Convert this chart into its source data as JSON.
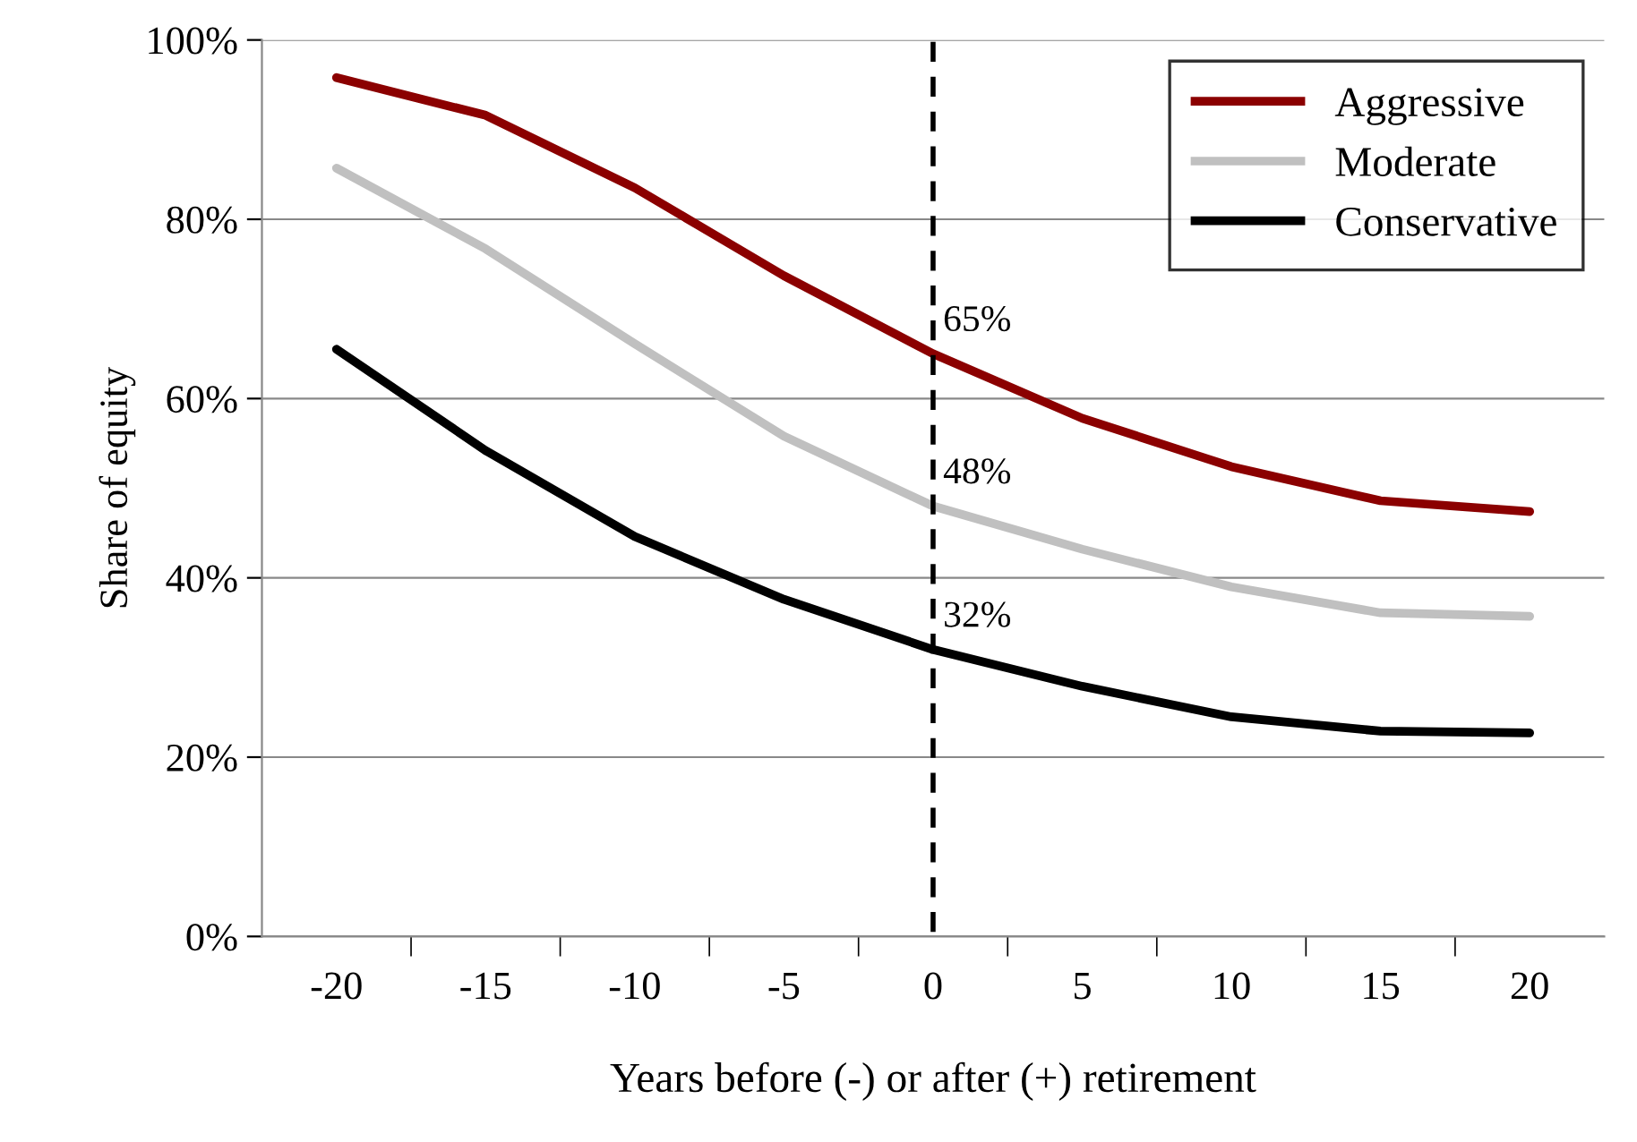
{
  "chart_data": {
    "type": "line",
    "xlabel": "Years before (-) or after (+) retirement",
    "ylabel": "Share of equity",
    "categories": [
      "-20",
      "-15",
      "-10",
      "-5",
      "0",
      "5",
      "10",
      "15",
      "20"
    ],
    "series": [
      {
        "name": "Aggressive",
        "color": "#8b0000",
        "values": [
          95.8,
          91.6,
          83.5,
          73.7,
          65,
          57.8,
          52.4,
          48.6,
          47.4
        ],
        "value_labels": [
          null,
          null,
          null,
          null,
          "65%",
          null,
          null,
          null,
          null
        ]
      },
      {
        "name": "Moderate",
        "color": "#c0c0c0",
        "values": [
          85.7,
          76.7,
          66.1,
          55.8,
          48,
          43.2,
          39,
          36.1,
          35.7
        ],
        "value_labels": [
          null,
          null,
          null,
          null,
          "48%",
          null,
          null,
          null,
          null
        ]
      },
      {
        "name": "Conservative",
        "color": "#000000",
        "values": [
          65.5,
          54.2,
          44.6,
          37.6,
          32,
          27.9,
          24.5,
          22.9,
          22.7
        ],
        "value_labels": [
          null,
          null,
          null,
          null,
          "32%",
          null,
          null,
          null,
          null
        ]
      }
    ],
    "ylim": [
      0,
      100
    ],
    "yticks": [
      {
        "value": 0,
        "label": "0%"
      },
      {
        "value": 20,
        "label": "20%"
      },
      {
        "value": 40,
        "label": "40%"
      },
      {
        "value": 60,
        "label": "60%"
      },
      {
        "value": 80,
        "label": "80%"
      },
      {
        "value": 100,
        "label": "100%"
      }
    ],
    "ref_lines": [
      {
        "axis": "x",
        "value": "0",
        "color": "#000000",
        "line_style": "dashed"
      }
    ],
    "grid": "y",
    "legend": "top right",
    "marker": "none",
    "line_style": "solid"
  }
}
